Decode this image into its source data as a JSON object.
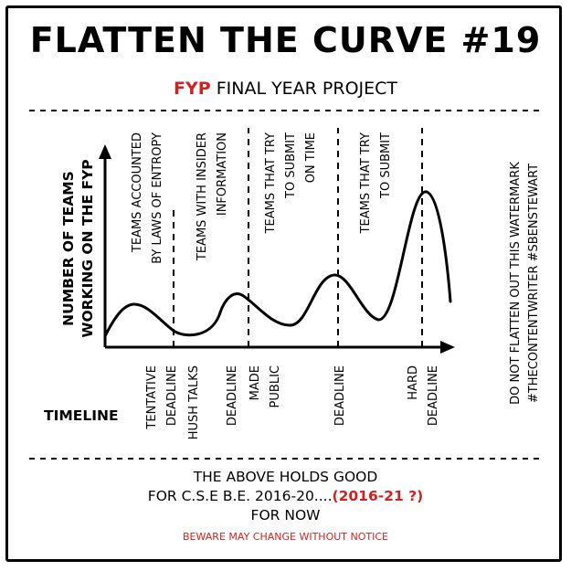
{
  "title": "FLATTEN THE CURVE #19",
  "subtitle": {
    "highlight": "FYP",
    "rest": "FINAL YEAR PROJECT"
  },
  "y_axis_label": {
    "line1": "NUMBER OF TEAMS",
    "line2": "WORKING ON THE FYP"
  },
  "timeline_label": "TIMELINE",
  "curve_annotations": [
    {
      "lines": [
        "TEAMS ACCOUNTED",
        "BY LAWS OF ENTROPY"
      ]
    },
    {
      "lines": [
        "TEAMS WITH INSIDER",
        "INFORMATION"
      ]
    },
    {
      "lines": [
        "TEAMS THAT TRY",
        "TO SUBMIT",
        "ON TIME"
      ]
    },
    {
      "lines": [
        "TEAMS THAT TRY",
        "TO SUBMIT"
      ]
    }
  ],
  "timeline_markers": [
    {
      "lines": [
        "TENTATIVE",
        "DEADLINE"
      ]
    },
    {
      "lines": [
        "HUSH TALKS"
      ]
    },
    {
      "lines": [
        "DEADLINE"
      ]
    },
    {
      "lines": [
        "MADE",
        "PUBLIC"
      ]
    },
    {
      "lines": [
        "DEADLINE"
      ]
    },
    {
      "lines": [
        "HARD",
        "DEADLINE"
      ]
    }
  ],
  "watermark": {
    "line1": "DO NOT FLATTEN OUT THIS WATERMARK",
    "line2": "#THECONTENTWRITER #SBENSTEWART"
  },
  "footer": {
    "line1": "THE ABOVE HOLDS GOOD",
    "line2_prefix": "FOR C.S.E B.E. 2016-20....",
    "line2_red": "(2016-21 ?)",
    "line3": "FOR NOW",
    "warning": "BEWARE MAY CHANGE WITHOUT NOTICE"
  },
  "colors": {
    "accent": "#d32121",
    "ink": "#000000"
  }
}
